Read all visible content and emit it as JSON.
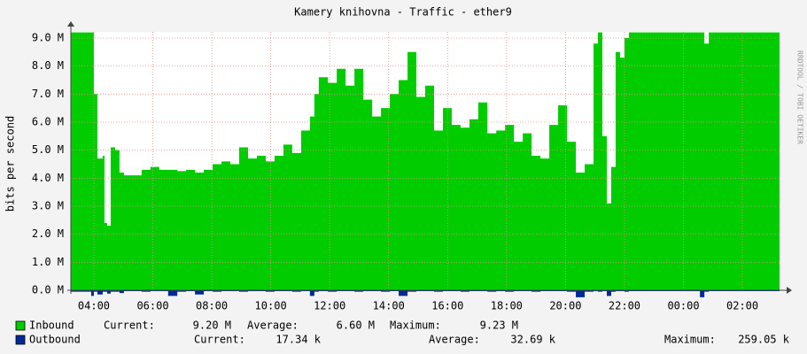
{
  "chart_data": {
    "type": "area",
    "title": "Kamery knihovna - Traffic - ether9",
    "y_label": "bits per second",
    "watermark": "RRDTOOL / TOBI OETIKER",
    "x": [
      3.22,
      3.91,
      4.0,
      4.12,
      4.3,
      4.36,
      4.45,
      4.57,
      4.72,
      4.87,
      5.02,
      5.32,
      5.62,
      5.92,
      6.22,
      6.52,
      6.83,
      7.13,
      7.43,
      7.73,
      8.03,
      8.33,
      8.63,
      8.93,
      9.23,
      9.53,
      9.83,
      10.13,
      10.43,
      10.73,
      11.03,
      11.33,
      11.48,
      11.63,
      11.94,
      12.24,
      12.54,
      12.84,
      13.14,
      13.44,
      13.74,
      14.04,
      14.34,
      14.64,
      14.94,
      15.24,
      15.54,
      15.84,
      16.14,
      16.44,
      16.74,
      17.04,
      17.35,
      17.65,
      17.95,
      18.25,
      18.55,
      18.85,
      19.15,
      19.45,
      19.75,
      20.05,
      20.35,
      20.65,
      20.95,
      21.1,
      21.25,
      21.4,
      21.55,
      21.7,
      21.85,
      22.0,
      22.15,
      24.56,
      24.71,
      24.86,
      27.26
    ],
    "series": [
      {
        "name": "Inbound",
        "color": "#00cc00",
        "values": [
          9.2,
          9.2,
          7.0,
          4.7,
          4.8,
          2.4,
          2.3,
          5.1,
          5.0,
          4.2,
          4.1,
          4.1,
          4.3,
          4.4,
          4.3,
          4.3,
          4.25,
          4.3,
          4.2,
          4.3,
          4.5,
          4.6,
          4.5,
          5.1,
          4.7,
          4.8,
          4.6,
          4.8,
          5.2,
          4.9,
          5.7,
          6.2,
          7.0,
          7.6,
          7.4,
          7.9,
          7.3,
          7.9,
          6.8,
          6.2,
          6.5,
          7.0,
          7.5,
          8.5,
          6.9,
          7.3,
          5.7,
          6.5,
          5.9,
          5.8,
          6.1,
          6.7,
          5.6,
          5.7,
          5.9,
          5.3,
          5.6,
          4.8,
          4.7,
          5.9,
          6.6,
          5.3,
          4.2,
          4.5,
          8.8,
          9.2,
          5.5,
          3.1,
          4.4,
          8.5,
          8.3,
          9.0,
          9.2,
          9.2,
          8.8,
          9.2,
          9.2
        ],
        "stats": [
          {
            "label": "Current:",
            "value": "9.20 M"
          },
          {
            "label": "Average:",
            "value": "6.60 M"
          },
          {
            "label": "Maximum:",
            "value": "9.23 M"
          }
        ]
      },
      {
        "name": "Outbound",
        "color": "#002a97",
        "values": [
          -0.05,
          -0.2,
          -0.05,
          -0.15,
          -0.05,
          -0.05,
          -0.12,
          -0.05,
          -0.05,
          -0.1,
          -0.03,
          -0.03,
          -0.05,
          -0.03,
          -0.03,
          -0.2,
          -0.05,
          -0.03,
          -0.15,
          -0.03,
          -0.05,
          -0.03,
          -0.03,
          -0.05,
          -0.03,
          -0.03,
          -0.05,
          -0.03,
          -0.03,
          -0.05,
          -0.03,
          -0.2,
          -0.05,
          -0.03,
          -0.05,
          -0.03,
          -0.03,
          -0.05,
          -0.03,
          -0.03,
          -0.05,
          -0.03,
          -0.2,
          -0.05,
          -0.03,
          -0.03,
          -0.05,
          -0.03,
          -0.03,
          -0.05,
          -0.03,
          -0.03,
          -0.05,
          -0.03,
          -0.05,
          -0.03,
          -0.03,
          -0.05,
          -0.03,
          -0.03,
          -0.03,
          -0.05,
          -0.25,
          -0.05,
          -0.03,
          -0.05,
          -0.03,
          -0.2,
          -0.05,
          -0.03,
          -0.03,
          -0.05,
          -0.03,
          -0.25,
          -0.05,
          -0.03,
          -0.05
        ],
        "stats": [
          {
            "label": "Current:",
            "value": "17.34 k"
          },
          {
            "label": "Average:",
            "value": "32.69 k"
          },
          {
            "label": "Maximum:",
            "value": "259.05 k"
          }
        ]
      }
    ],
    "xlim": [
      3.22,
      27.26
    ],
    "xticks": [
      {
        "value": 4,
        "label": "04:00"
      },
      {
        "value": 6,
        "label": "06:00"
      },
      {
        "value": 8,
        "label": "08:00"
      },
      {
        "value": 10,
        "label": "10:00"
      },
      {
        "value": 12,
        "label": "12:00"
      },
      {
        "value": 14,
        "label": "14:00"
      },
      {
        "value": 16,
        "label": "16:00"
      },
      {
        "value": 18,
        "label": "18:00"
      },
      {
        "value": 20,
        "label": "20:00"
      },
      {
        "value": 22,
        "label": "22:00"
      },
      {
        "value": 24,
        "label": "00:00"
      },
      {
        "value": 26,
        "label": "02:00"
      }
    ],
    "ylim": [
      0,
      9.22
    ],
    "yticks": [
      {
        "value": 0,
        "label": "0.0 M"
      },
      {
        "value": 1,
        "label": "1.0 M"
      },
      {
        "value": 2,
        "label": "2.0 M"
      },
      {
        "value": 3,
        "label": "3.0 M"
      },
      {
        "value": 4,
        "label": "4.0 M"
      },
      {
        "value": 5,
        "label": "5.0 M"
      },
      {
        "value": 6,
        "label": "6.0 M"
      },
      {
        "value": 7,
        "label": "7.0 M"
      },
      {
        "value": 8,
        "label": "8.0 M"
      },
      {
        "value": 9,
        "label": "9.0 M"
      }
    ],
    "grid": true
  }
}
